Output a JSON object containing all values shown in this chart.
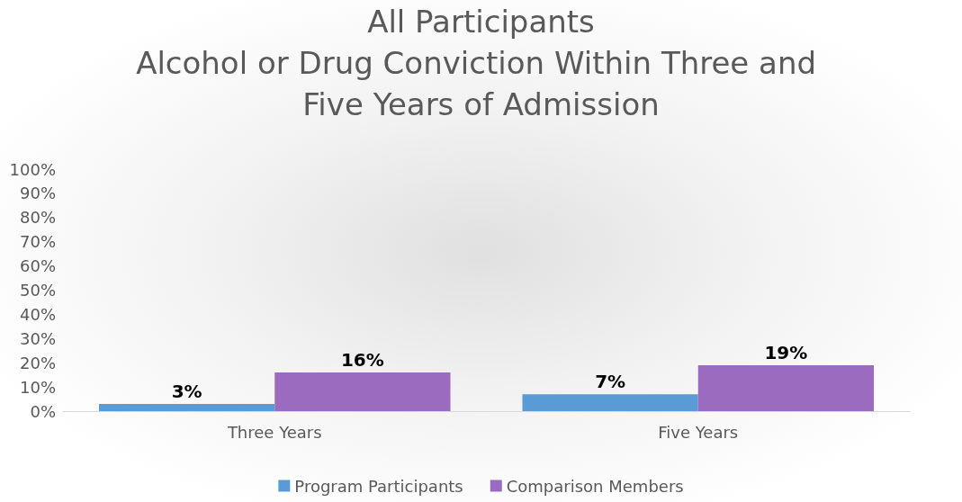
{
  "chart_data": {
    "type": "bar",
    "title": "All Participants",
    "subtitle": "Alcohol or Drug Conviction Within Three and Five Years of Admission",
    "categories": [
      "Three Years",
      "Five Years"
    ],
    "series": [
      {
        "name": "Program Participants",
        "color": "#5b9bd5",
        "values": [
          3,
          7
        ],
        "value_labels": [
          "3%",
          "7%"
        ]
      },
      {
        "name": "Comparison Members",
        "color": "#9b6bbf",
        "values": [
          16,
          19
        ],
        "value_labels": [
          "16%",
          "19%"
        ]
      }
    ],
    "ylim": [
      0,
      100
    ],
    "yticks": [
      {
        "value": 0,
        "label": "0%"
      },
      {
        "value": 10,
        "label": "10%"
      },
      {
        "value": 20,
        "label": "20%"
      },
      {
        "value": 30,
        "label": "30%"
      },
      {
        "value": 40,
        "label": "40%"
      },
      {
        "value": 50,
        "label": "50%"
      },
      {
        "value": 60,
        "label": "60%"
      },
      {
        "value": 70,
        "label": "70%"
      },
      {
        "value": 80,
        "label": "80%"
      },
      {
        "value": 90,
        "label": "90%"
      },
      {
        "value": 100,
        "label": "100%"
      }
    ],
    "grid": false,
    "legend": "bottom"
  }
}
